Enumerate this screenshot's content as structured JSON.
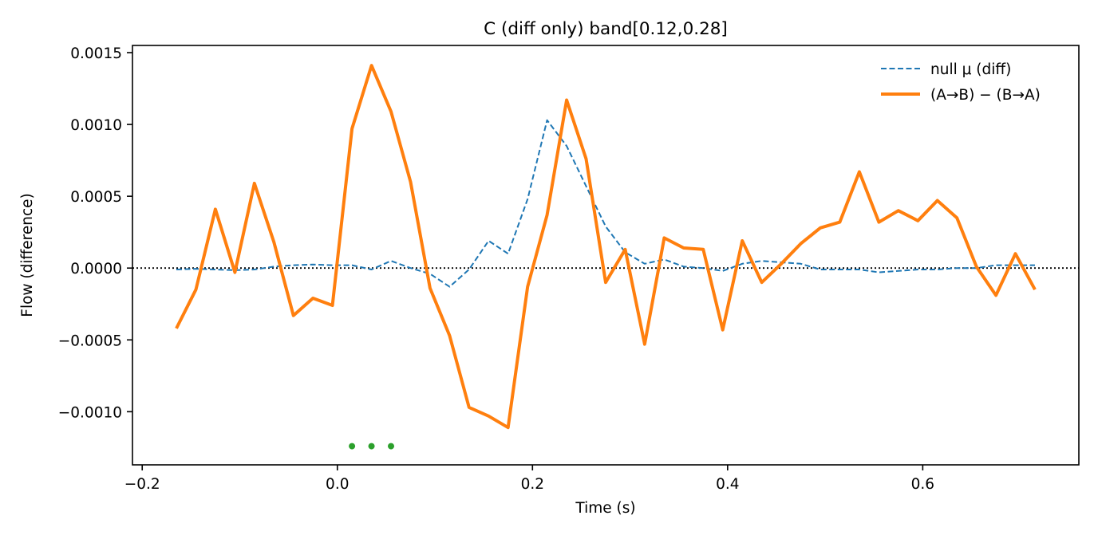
{
  "chart_data": {
    "type": "line",
    "title": "C (diff only)   band[0.12,0.28]",
    "xlabel": "Time (s)",
    "ylabel": "Flow (difference)",
    "xlim": [
      -0.21,
      0.76
    ],
    "ylim": [
      -0.00137,
      0.00155
    ],
    "xticks": [
      -0.2,
      0.0,
      0.2,
      0.4,
      0.6
    ],
    "xtick_labels": [
      "−0.2",
      "0.0",
      "0.2",
      "0.4",
      "0.6"
    ],
    "yticks": [
      0.0015,
      0.001,
      0.0005,
      0.0,
      -0.0005,
      -0.001
    ],
    "ytick_labels": [
      "0.0015",
      "0.0010",
      "0.0005",
      "0.0000",
      "−0.0005",
      "−0.0010"
    ],
    "grid": false,
    "legend_position": "top-right",
    "reference_line": {
      "y": 0.0,
      "style": "dotted",
      "color": "#000000"
    },
    "x": [
      -0.165,
      -0.145,
      -0.125,
      -0.105,
      -0.085,
      -0.065,
      -0.045,
      -0.025,
      -0.005,
      0.015,
      0.035,
      0.055,
      0.075,
      0.095,
      0.115,
      0.135,
      0.155,
      0.175,
      0.195,
      0.215,
      0.235,
      0.255,
      0.275,
      0.295,
      0.315,
      0.335,
      0.355,
      0.375,
      0.395,
      0.415,
      0.435,
      0.455,
      0.475,
      0.495,
      0.515,
      0.535,
      0.555,
      0.575,
      0.595,
      0.615,
      0.635,
      0.655,
      0.675,
      0.695,
      0.715
    ],
    "series": [
      {
        "name": "null μ (diff)",
        "color": "#1f77b4",
        "style": "dashed",
        "values": [
          -1e-05,
          -5e-06,
          -1e-05,
          -1.5e-05,
          -1e-05,
          1e-05,
          2e-05,
          2.5e-05,
          2e-05,
          2e-05,
          -1e-05,
          5e-05,
          0.0,
          -4e-05,
          -0.00013,
          -1e-05,
          0.00019,
          0.0001,
          0.00048,
          0.00103,
          0.00085,
          0.00057,
          0.00029,
          0.00011,
          3e-05,
          6e-05,
          1e-05,
          0.0,
          -2e-05,
          3e-05,
          5e-05,
          4e-05,
          3e-05,
          -1e-05,
          -1e-05,
          -1e-05,
          -3e-05,
          -2e-05,
          -1e-05,
          -1e-05,
          0.0,
          0.0,
          2e-05,
          2e-05,
          2e-05
        ]
      },
      {
        "name": "(A→B) − (B→A)",
        "color": "#ff7f0e",
        "style": "solid",
        "values": [
          -0.00042,
          -0.00015,
          0.00041,
          -3e-05,
          0.00059,
          0.00018,
          -0.00033,
          -0.00021,
          -0.00026,
          0.00097,
          0.00141,
          0.00109,
          0.0006,
          -0.00014,
          -0.00047,
          -0.00097,
          -0.00103,
          -0.00111,
          -0.00013,
          0.00037,
          0.00117,
          0.00076,
          -0.0001,
          0.00013,
          -0.00053,
          0.00021,
          0.00014,
          0.00013,
          -0.00043,
          0.00019,
          -0.0001,
          3e-05,
          0.00017,
          0.00028,
          0.00032,
          0.00067,
          0.00032,
          0.0004,
          0.00033,
          0.00047,
          0.00035,
          1e-05,
          -0.00019,
          0.0001,
          -0.00015
        ]
      }
    ],
    "markers": {
      "color": "#2ca02c",
      "x": [
        0.015,
        0.035,
        0.055
      ],
      "y": [
        -0.00124,
        -0.00124,
        -0.00124
      ]
    }
  }
}
